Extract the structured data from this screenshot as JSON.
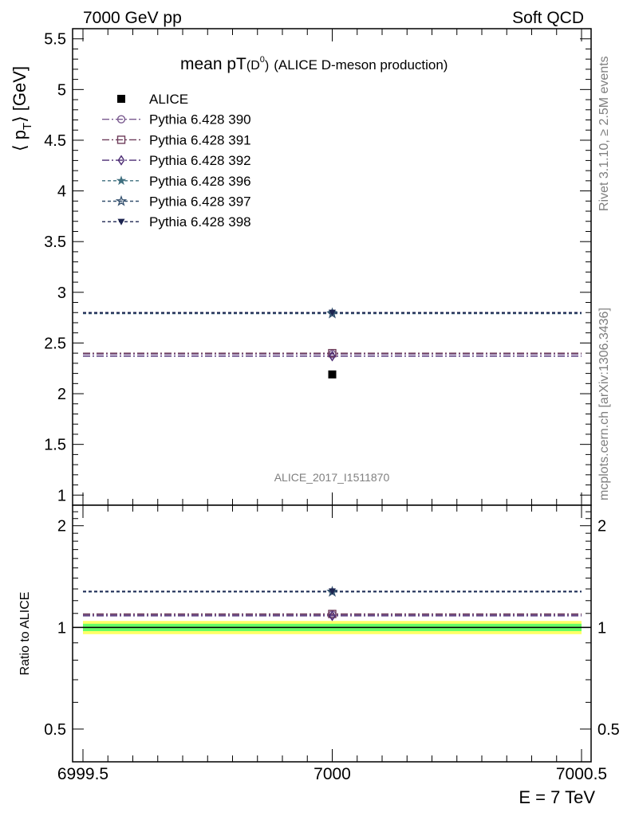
{
  "header": {
    "left": "7000 GeV pp",
    "right": "Soft QCD"
  },
  "side_labels": {
    "rivet": "Rivet 3.1.10, ≥ 2.5M events",
    "mcplots": "mcplots.cern.ch [arXiv:1306.3436]"
  },
  "colors": {
    "alice": "#000000",
    "p390": "#7a5a8f",
    "p391": "#6e3c5a",
    "p392": "#4b2b73",
    "p396": "#3f6f7f",
    "p397": "#34506e",
    "p398": "#1c2450",
    "band_inner": "#66ff66",
    "band_outer": "#ffff66"
  },
  "chart_data": [
    {
      "type": "scatter",
      "title_main": "mean pT",
      "title_sub": "(D",
      "title_sup": "0",
      "title_close": ")",
      "title_extra": "(ALICE D-meson production)",
      "ylabel_open": "⟨ p",
      "ylabel_sub": "T",
      "ylabel_close": "⟩ [GeV]",
      "watermark": "ALICE_2017_I1511870",
      "xlim": [
        6999.5,
        7000.5
      ],
      "ylim": [
        0.9,
        5.6
      ],
      "yticks": [
        1,
        1.5,
        2,
        2.5,
        3,
        3.5,
        4,
        4.5,
        5,
        5.5
      ],
      "ytick_labels": [
        "1",
        "1.5",
        "2",
        "2.5",
        "3",
        "3.5",
        "4",
        "4.5",
        "5",
        "5.5"
      ],
      "legend_position": "top-left",
      "series": [
        {
          "name": "ALICE",
          "key": "alice",
          "x": 7000,
          "y": 2.19,
          "marker": "square-filled",
          "line": "none"
        },
        {
          "name": "Pythia 6.428 390",
          "key": "p390",
          "x": 7000,
          "y": 2.39,
          "marker": "circle-open",
          "line": "dashdot"
        },
        {
          "name": "Pythia 6.428 391",
          "key": "p391",
          "x": 7000,
          "y": 2.4,
          "marker": "square-open",
          "line": "dashdot"
        },
        {
          "name": "Pythia 6.428 392",
          "key": "p392",
          "x": 7000,
          "y": 2.37,
          "marker": "diamond-open",
          "line": "dashdot"
        },
        {
          "name": "Pythia 6.428 396",
          "key": "p396",
          "x": 7000,
          "y": 2.8,
          "marker": "star-filled",
          "line": "dashed"
        },
        {
          "name": "Pythia 6.428 397",
          "key": "p397",
          "x": 7000,
          "y": 2.79,
          "marker": "star-open",
          "line": "dashed"
        },
        {
          "name": "Pythia 6.428 398",
          "key": "p398",
          "x": 7000,
          "y": 2.8,
          "marker": "triangle-down-filled",
          "line": "dashed"
        }
      ]
    },
    {
      "type": "scatter",
      "ylabel": "Ratio to ALICE",
      "xlabel": "E = 7 TeV",
      "xlim": [
        6999.5,
        7000.5
      ],
      "xticks": [
        6999.5,
        7000,
        7000.5
      ],
      "xtick_labels": [
        "6999.5",
        "7000",
        "7000.5"
      ],
      "ylim": [
        0.4,
        2.3
      ],
      "yticks": [
        0.5,
        1,
        2
      ],
      "ytick_labels": [
        "0.5",
        "1",
        "2"
      ],
      "reference": 1.0,
      "band_inner": [
        0.975,
        1.025
      ],
      "band_outer": [
        0.955,
        1.045
      ],
      "series": [
        {
          "key": "p390",
          "x": 7000,
          "y": 1.091,
          "marker": "circle-open",
          "line": "dashdot"
        },
        {
          "key": "p391",
          "x": 7000,
          "y": 1.096,
          "marker": "square-open",
          "line": "dashdot"
        },
        {
          "key": "p392",
          "x": 7000,
          "y": 1.082,
          "marker": "diamond-open",
          "line": "dashdot"
        },
        {
          "key": "p396",
          "x": 7000,
          "y": 1.279,
          "marker": "star-filled",
          "line": "dashed"
        },
        {
          "key": "p397",
          "x": 7000,
          "y": 1.274,
          "marker": "star-open",
          "line": "dashed"
        },
        {
          "key": "p398",
          "x": 7000,
          "y": 1.279,
          "marker": "triangle-down-filled",
          "line": "dashed"
        }
      ]
    }
  ]
}
